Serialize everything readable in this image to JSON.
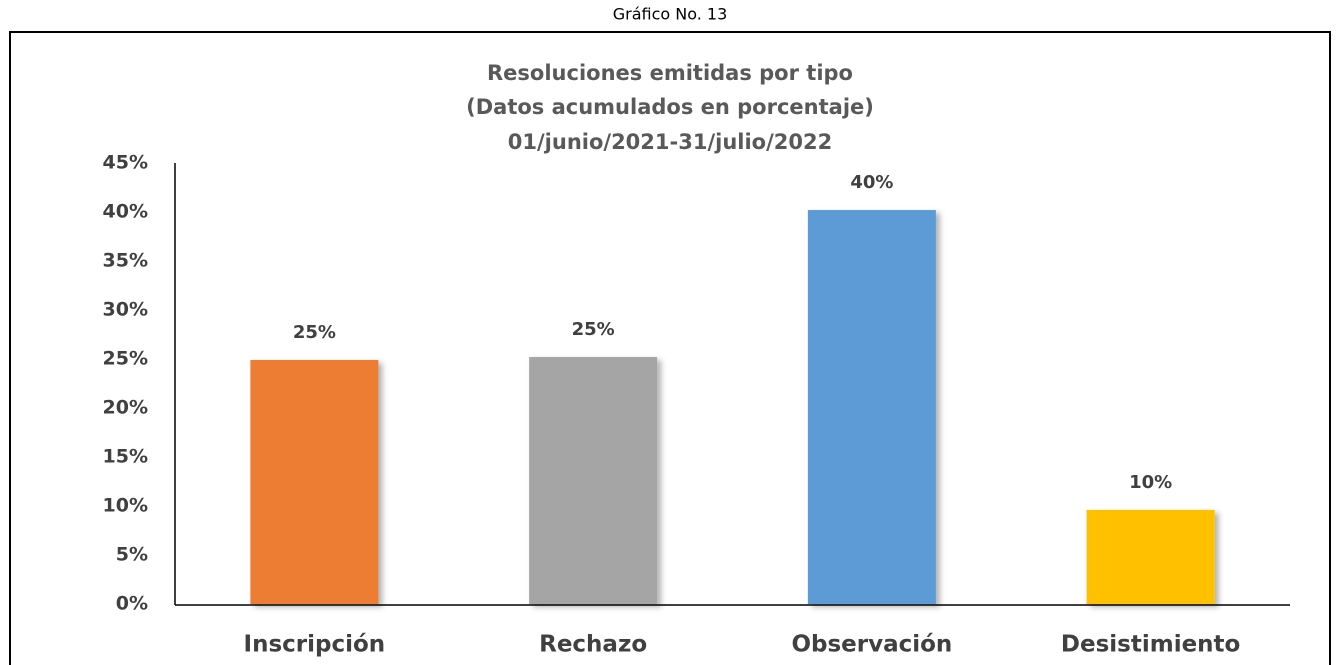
{
  "chart_data": {
    "type": "bar",
    "caption": "Gráfico No. 13",
    "title": [
      "Resoluciones emitidas por tipo",
      "(Datos acumulados en porcentaje)",
      "01/junio/2021-31/julio/2022"
    ],
    "categories": [
      "Inscripción",
      "Rechazo",
      "Observación",
      "Desistimiento"
    ],
    "values": [
      24.9,
      25.2,
      40.2,
      9.6
    ],
    "value_labels": [
      "25%",
      "25%",
      "40%",
      "10%"
    ],
    "colors": [
      "#ed7d31",
      "#a5a5a5",
      "#5b9bd5",
      "#ffc000"
    ],
    "ylim": [
      0,
      45
    ],
    "yticks": [
      {
        "value": 0,
        "label": "0%"
      },
      {
        "value": 5,
        "label": "5%"
      },
      {
        "value": 10,
        "label": "10%"
      },
      {
        "value": 15,
        "label": "15%"
      },
      {
        "value": 20,
        "label": "20%"
      },
      {
        "value": 25,
        "label": "25%"
      },
      {
        "value": 30,
        "label": "30%"
      },
      {
        "value": 35,
        "label": "35%"
      },
      {
        "value": 40,
        "label": "40%"
      },
      {
        "value": 45,
        "label": "45%"
      }
    ],
    "grid": false
  }
}
